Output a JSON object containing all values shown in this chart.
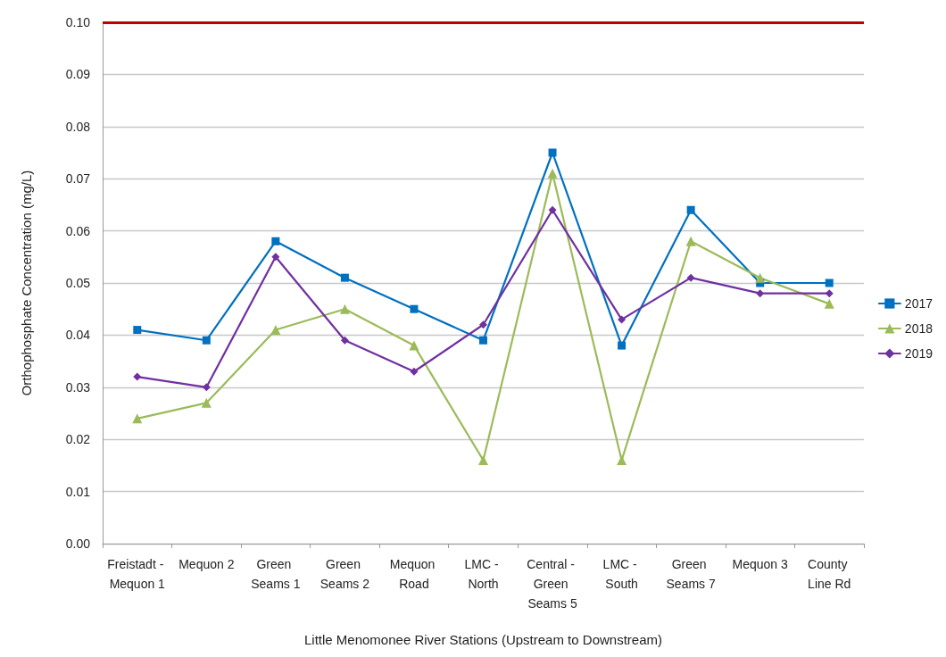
{
  "chart_data": {
    "type": "line",
    "xlabel": "Little Menomonee River Stations (Upstream to Downstream)",
    "ylabel": "Orthophosphate Concentration (mg/L)",
    "categories": [
      "Freistadt - Mequon 1",
      "Mequon 2",
      "Green Seams 1",
      "Green Seams 2",
      "Mequon Road",
      "LMC - North",
      "Central - Green Seams 5",
      "LMC - South",
      "Green Seams 7",
      "Mequon 3",
      "County Line Rd"
    ],
    "series": [
      {
        "name": "2017",
        "color": "#0070c0",
        "marker": "square",
        "values": [
          0.041,
          0.039,
          0.058,
          0.051,
          0.045,
          0.039,
          0.075,
          0.038,
          0.064,
          0.05,
          0.05
        ]
      },
      {
        "name": "2018",
        "color": "#9bbb59",
        "marker": "triangle",
        "values": [
          0.024,
          0.027,
          0.041,
          0.045,
          0.038,
          0.016,
          0.071,
          0.016,
          0.058,
          0.051,
          0.046
        ]
      },
      {
        "name": "2019",
        "color": "#7030a0",
        "marker": "diamond",
        "values": [
          0.032,
          0.03,
          0.055,
          0.039,
          0.033,
          0.042,
          0.064,
          0.043,
          0.051,
          0.048,
          0.048
        ]
      }
    ],
    "ylim": [
      0,
      0.1
    ],
    "yticks": [
      {
        "value": 0,
        "label": "0.00"
      },
      {
        "value": 0.01,
        "label": "0.01"
      },
      {
        "value": 0.02,
        "label": "0.02"
      },
      {
        "value": 0.03,
        "label": "0.03"
      },
      {
        "value": 0.04,
        "label": "0.04"
      },
      {
        "value": 0.05,
        "label": "0.05"
      },
      {
        "value": 0.06,
        "label": "0.06"
      },
      {
        "value": 0.07,
        "label": "0.07"
      },
      {
        "value": 0.08,
        "label": "0.08"
      },
      {
        "value": 0.09,
        "label": "0.09"
      },
      {
        "value": 0.1,
        "label": "0.10"
      }
    ],
    "ref_lines": [
      {
        "axis": "y",
        "value": 0.1,
        "color": "#c00000",
        "line_style": "solid"
      }
    ],
    "grid": "y",
    "legend": "right",
    "line_style": "solid"
  }
}
